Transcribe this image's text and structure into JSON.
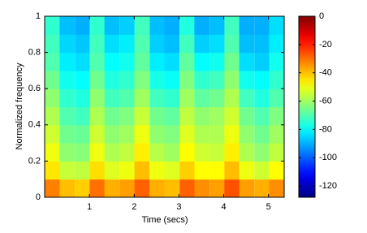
{
  "chart_data": {
    "type": "heatmap",
    "xlabel": "Time (secs)",
    "ylabel": "Normalized frequency",
    "x": [
      0.17,
      0.5,
      0.84,
      1.17,
      1.5,
      1.84,
      2.17,
      2.51,
      2.84,
      3.18,
      3.51,
      3.85,
      4.18,
      4.51,
      4.85,
      5.18
    ],
    "y": [
      0.05,
      0.15,
      0.25,
      0.35,
      0.45,
      0.55,
      0.65,
      0.75,
      0.85,
      0.95
    ],
    "z": [
      [
        -32,
        -40,
        -42,
        -30,
        -38,
        -36,
        -28,
        -38,
        -40,
        -28,
        -34,
        -36,
        -26,
        -36,
        -38,
        -34
      ],
      [
        -45,
        -55,
        -56,
        -44,
        -52,
        -50,
        -40,
        -50,
        -52,
        -42,
        -48,
        -48,
        -40,
        -50,
        -54,
        -48
      ],
      [
        -50,
        -62,
        -63,
        -50,
        -58,
        -56,
        -46,
        -57,
        -60,
        -48,
        -54,
        -55,
        -46,
        -58,
        -62,
        -56
      ],
      [
        -54,
        -66,
        -67,
        -54,
        -62,
        -60,
        -50,
        -62,
        -64,
        -52,
        -58,
        -58,
        -50,
        -62,
        -66,
        -60
      ],
      [
        -58,
        -70,
        -72,
        -58,
        -66,
        -64,
        -55,
        -66,
        -68,
        -56,
        -62,
        -60,
        -54,
        -66,
        -70,
        -64
      ],
      [
        -62,
        -74,
        -76,
        -62,
        -72,
        -70,
        -60,
        -72,
        -74,
        -60,
        -68,
        -66,
        -58,
        -72,
        -76,
        -70
      ],
      [
        -66,
        -78,
        -80,
        -66,
        -76,
        -74,
        -64,
        -77,
        -79,
        -64,
        -74,
        -72,
        -62,
        -78,
        -80,
        -74
      ],
      [
        -70,
        -82,
        -84,
        -70,
        -80,
        -78,
        -68,
        -82,
        -84,
        -68,
        -80,
        -78,
        -66,
        -84,
        -86,
        -78
      ],
      [
        -72,
        -85,
        -87,
        -72,
        -84,
        -82,
        -70,
        -86,
        -88,
        -72,
        -86,
        -84,
        -70,
        -88,
        -88,
        -82
      ],
      [
        -74,
        -88,
        -90,
        -74,
        -88,
        -86,
        -72,
        -88,
        -90,
        -76,
        -90,
        -88,
        -72,
        -90,
        -90,
        -84
      ]
    ],
    "xlim": [
      0,
      5.35
    ],
    "xticks": [
      1,
      2,
      3,
      4,
      5
    ],
    "ylim": [
      0,
      1
    ],
    "yticks": [
      0,
      0.2,
      0.4,
      0.6,
      0.8,
      1
    ],
    "clim": [
      -128,
      0
    ],
    "cticks": [
      0,
      -20,
      -40,
      -60,
      -80,
      -100,
      -120
    ],
    "colormap": "jet"
  }
}
